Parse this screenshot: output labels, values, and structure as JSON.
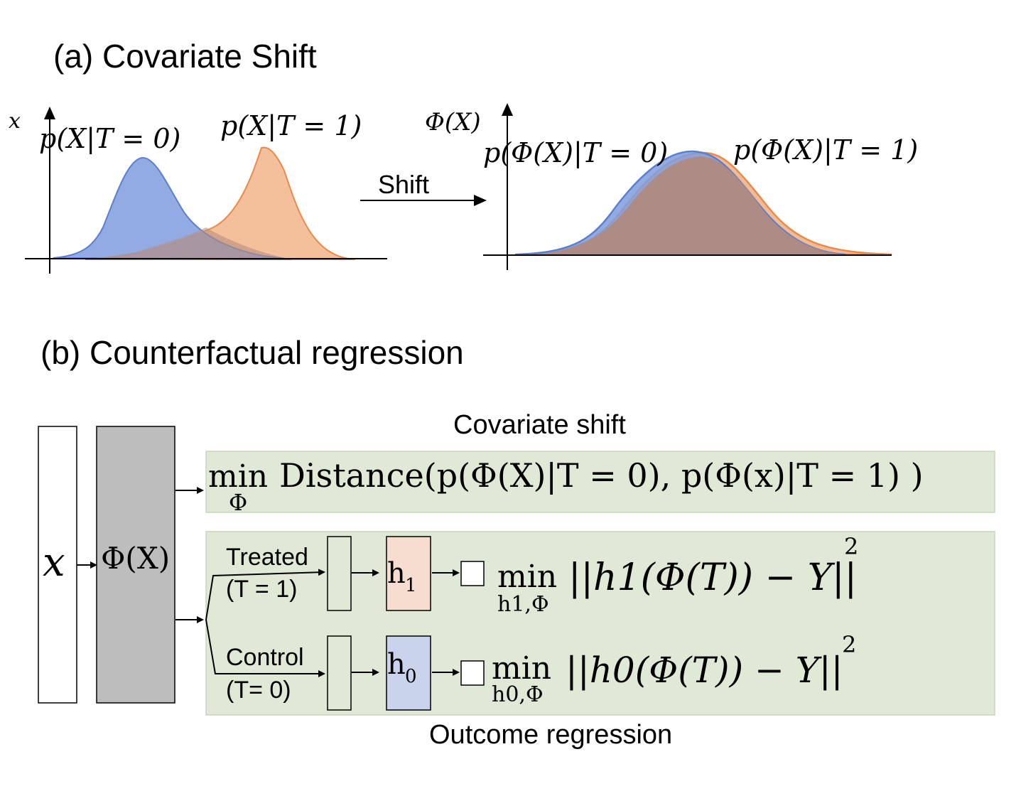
{
  "panel_a": {
    "title": "(a) Covariate Shift",
    "left_plot": {
      "y_axis_label": "x",
      "curve0_label": "p(X|T = 0)",
      "curve1_label": "p(X|T = 1)"
    },
    "shift_label": "Shift",
    "right_plot": {
      "y_axis_label": "Φ(X)",
      "curve0_label": "p(Φ(X)|T = 0)",
      "curve1_label": "p(Φ(X)|T = 1)"
    }
  },
  "panel_b": {
    "title": "(b) Counterfactual regression",
    "input_label": "x",
    "rep_label": "Φ(X)",
    "covariate_shift_caption": "Covariate shift",
    "distance_min": "min",
    "distance_sub": "Φ",
    "distance_expr": "Distance(p(Φ(X)|T = 0), p(Φ(x)|T = 1) )",
    "treated_label_1": "Treated",
    "treated_label_2": "(T = 1)",
    "control_label_1": "Control",
    "control_label_2": "(T= 0)",
    "h1_label": "h",
    "h1_sub": "1",
    "h0_label": "h",
    "h0_sub": "0",
    "loss1_min": "min",
    "loss1_sub": "h1,Φ",
    "loss1_expr": "||h1(Φ(T)) − Y||",
    "loss1_pow": "2",
    "loss0_min": "min",
    "loss0_sub": "h0,Φ",
    "loss0_expr": "||h0(Φ(T)) − Y||",
    "loss0_pow": "2",
    "outcome_caption": "Outcome regression"
  },
  "colors": {
    "blue_fill": "#7f9ede",
    "blue_line": "#5b7fd0",
    "orange_fill": "#f2b48a",
    "orange_line": "#ea8a4a",
    "green_box": "#dfe9d5",
    "gray_box": "#bdbdbd",
    "h1_fill": "#f7ddd0",
    "h0_fill": "#c9d3ec"
  }
}
